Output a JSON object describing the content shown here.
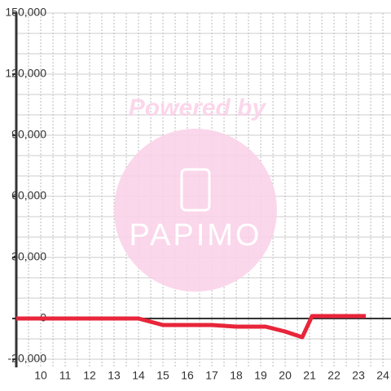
{
  "chart_data": {
    "type": "line",
    "watermark": {
      "title": "Powered by",
      "brand": "PAPIMO"
    },
    "x": [
      9,
      14,
      14.5,
      15,
      17,
      18,
      19.2,
      20,
      20.7,
      21.1,
      23.3
    ],
    "series": [
      {
        "color": "#e8253a",
        "values": [
          0,
          0,
          -1600,
          -3200,
          -3200,
          -4000,
          -4000,
          -6400,
          -9200,
          1200,
          1200
        ]
      }
    ],
    "xlim": [
      9,
      24.33
    ],
    "xticks": [
      10,
      11,
      12,
      13,
      14,
      15,
      16,
      17,
      18,
      19,
      20,
      21,
      22,
      23,
      24
    ],
    "x_minor_ticks": [
      9.5,
      10.5,
      11.5,
      12.5,
      13.5,
      14.5,
      15.5,
      16.5,
      17.5,
      18.5,
      19.5,
      20.5,
      21.5,
      22.5,
      23.5
    ],
    "ylim": [
      -24000,
      150000
    ],
    "yticks": [
      {
        "value": -20000,
        "label": "-20,000"
      },
      0,
      {
        "value": 30000,
        "label": "30,000"
      },
      {
        "value": 60000,
        "label": "60,000"
      },
      {
        "value": 90000,
        "label": "90,000"
      },
      {
        "value": 120000,
        "label": "120,000"
      },
      {
        "value": 150000,
        "label": "150,000"
      }
    ],
    "y_minor_ticks": [
      -10000,
      10000,
      20000,
      40000,
      50000,
      70000,
      80000,
      100000,
      110000,
      130000,
      140000
    ],
    "grid": true
  }
}
